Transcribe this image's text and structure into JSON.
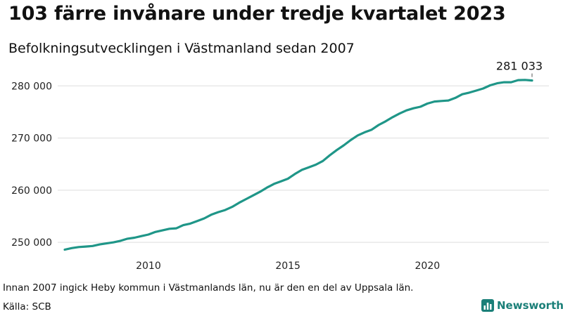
{
  "header": {
    "title": "103 färre invånare under tredje kvartalet 2023",
    "subtitle": "Befolkningsutvecklingen i Västmanland sedan 2007"
  },
  "footer": {
    "note": "Innan 2007 ingick Heby kommun i Västmanlands län, nu är den en del av Uppsala län.",
    "source": "Källa: SCB",
    "brand": "Newsworthy"
  },
  "colors": {
    "line": "#1f9688",
    "grid": "#dddddd",
    "brand": "#1a7f78"
  },
  "chart_data": {
    "type": "line",
    "title": "103 färre invånare under tredje kvartalet 2023",
    "subtitle": "Befolkningsutvecklingen i Västmanland sedan 2007",
    "xlabel": "",
    "ylabel": "",
    "grid": true,
    "xlim": [
      2007.0,
      2023.75
    ],
    "ylim": [
      248000,
      283000
    ],
    "x_ticks": [
      2010,
      2015,
      2020
    ],
    "x_tick_labels": [
      "2010",
      "2015",
      "2020"
    ],
    "y_ticks": [
      250000,
      260000,
      270000,
      280000
    ],
    "y_tick_labels": [
      "250 000",
      "260 000",
      "270 000",
      "280 000"
    ],
    "annotation": {
      "x": 2023.75,
      "y": 281033,
      "label": "281 033"
    },
    "series": [
      {
        "x": [
          2007.0,
          2007.25,
          2007.5,
          2007.75,
          2008.0,
          2008.25,
          2008.5,
          2008.75,
          2009.0,
          2009.25,
          2009.5,
          2009.75,
          2010.0,
          2010.25,
          2010.5,
          2010.75,
          2011.0,
          2011.25,
          2011.5,
          2011.75,
          2012.0,
          2012.25,
          2012.5,
          2012.75,
          2013.0,
          2013.25,
          2013.5,
          2013.75,
          2014.0,
          2014.25,
          2014.5,
          2014.75,
          2015.0,
          2015.25,
          2015.5,
          2015.75,
          2016.0,
          2016.25,
          2016.5,
          2016.75,
          2017.0,
          2017.25,
          2017.5,
          2017.75,
          2018.0,
          2018.25,
          2018.5,
          2018.75,
          2019.0,
          2019.25,
          2019.5,
          2019.75,
          2020.0,
          2020.25,
          2020.5,
          2020.75,
          2021.0,
          2021.25,
          2021.5,
          2021.75,
          2022.0,
          2022.25,
          2022.5,
          2022.75,
          2023.0,
          2023.25,
          2023.5,
          2023.75
        ],
        "values": [
          248600,
          248900,
          249100,
          249200,
          249300,
          249600,
          249800,
          250000,
          250300,
          250700,
          250900,
          251200,
          251500,
          252000,
          252300,
          252600,
          252700,
          253300,
          253600,
          254100,
          254600,
          255300,
          255800,
          256200,
          256800,
          257600,
          258300,
          259000,
          259700,
          260500,
          261200,
          261700,
          262200,
          263100,
          263900,
          264400,
          264900,
          265600,
          266700,
          267700,
          268600,
          269600,
          270500,
          271100,
          271600,
          272500,
          273200,
          274000,
          274700,
          275300,
          275700,
          276000,
          276600,
          277000,
          277100,
          277200,
          277700,
          278400,
          278700,
          279100,
          279500,
          280100,
          280500,
          280700,
          280700,
          281100,
          281136,
          281033
        ]
      }
    ]
  }
}
